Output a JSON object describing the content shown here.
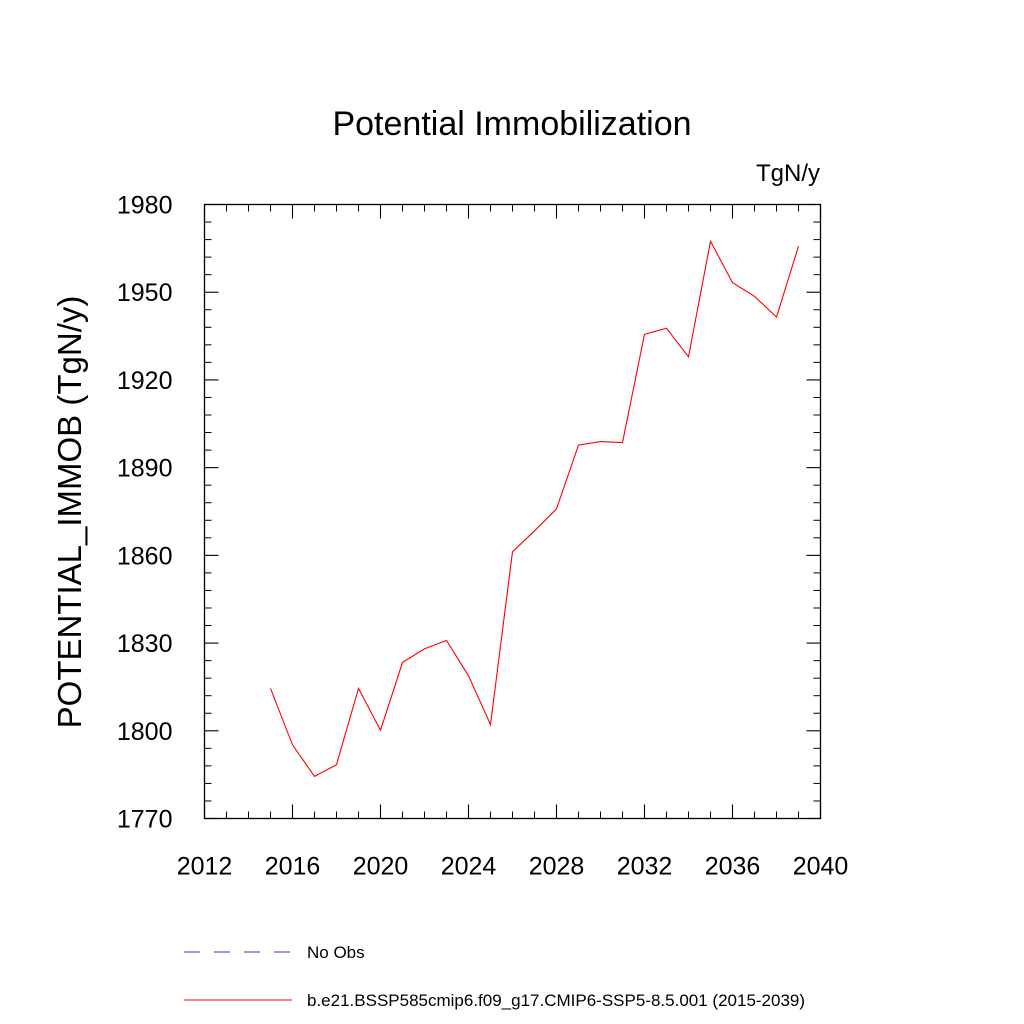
{
  "chart_data": {
    "type": "line",
    "title": "Potential Immobilization",
    "units": "TgN/y",
    "ylabel": "POTENTIAL_IMMOB  (TgN/y)",
    "xlabel": "",
    "xlim": [
      2012,
      2040
    ],
    "ylim": [
      1770,
      1980
    ],
    "xticks": [
      2012,
      2016,
      2020,
      2024,
      2028,
      2032,
      2036,
      2040
    ],
    "yticks": [
      1770,
      1800,
      1830,
      1860,
      1890,
      1920,
      1950,
      1980
    ],
    "grid": false,
    "legend_position": "bottom",
    "series": [
      {
        "name": "No Obs",
        "color": "#3333cc",
        "dash": "dashed",
        "x": [],
        "y": []
      },
      {
        "name": "b.e21.BSSP585cmip6.f09_g17.CMIP6-SSP5-8.5.001 (2015-2039)",
        "color": "#ff0000",
        "dash": "solid",
        "x": [
          2015,
          2016,
          2017,
          2018,
          2019,
          2020,
          2021,
          2022,
          2023,
          2024,
          2025,
          2026,
          2027,
          2028,
          2029,
          2030,
          2031,
          2032,
          2033,
          2034,
          2035,
          2036,
          2037,
          2038,
          2039
        ],
        "y": [
          1814.5,
          1795.2,
          1784.4,
          1788.4,
          1814.5,
          1800.2,
          1823.4,
          1828.0,
          1830.9,
          1818.8,
          1802.1,
          1861.2,
          1868.4,
          1875.9,
          1897.7,
          1898.9,
          1898.6,
          1935.6,
          1937.7,
          1927.9,
          1967.4,
          1953.3,
          1948.6,
          1941.5,
          1965.7
        ]
      }
    ]
  }
}
